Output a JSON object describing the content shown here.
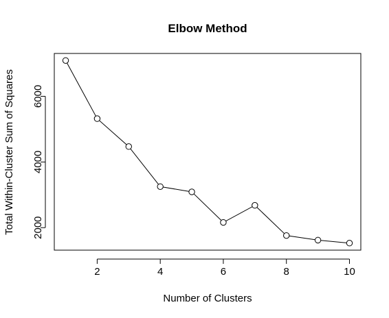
{
  "chart_data": {
    "type": "line",
    "title": "Elbow Method",
    "xlabel": "Number of Clusters",
    "ylabel": "Total Within-Cluster Sum of Squares",
    "x": [
      1,
      2,
      3,
      4,
      5,
      6,
      7,
      8,
      9,
      10
    ],
    "series": [
      {
        "values": [
          7090,
          5320,
          4470,
          3250,
          3090,
          2160,
          2680,
          1760,
          1620,
          1530
        ]
      }
    ],
    "xlim": [
      0.64,
      10.36
    ],
    "ylim": [
      1315,
      7305
    ],
    "xticks": [
      2,
      4,
      6,
      8,
      10
    ],
    "yticks": [
      2000,
      4000,
      6000
    ],
    "grid": false,
    "legend": "none"
  }
}
